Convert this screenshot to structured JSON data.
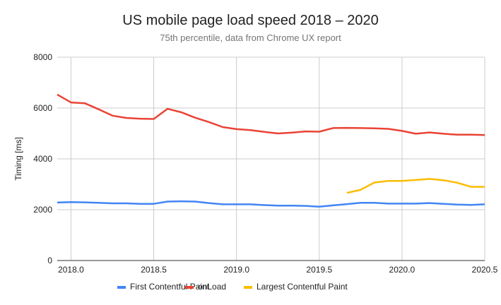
{
  "chart_data": {
    "type": "line",
    "title": "US mobile page load speed 2018 – 2020",
    "subtitle": "75th percentile, data from Chrome UX report",
    "xlabel": "",
    "ylabel": "Timing [ms]",
    "xlim": [
      2017.917,
      2020.5
    ],
    "ylim": [
      0,
      8000
    ],
    "x_ticks": [
      2018.0,
      2018.5,
      2019.0,
      2019.5,
      2020.0,
      2020.5
    ],
    "x_tick_labels": [
      "2018.0",
      "2018.5",
      "2019.0",
      "2019.5",
      "2020.0",
      "2020.5"
    ],
    "y_ticks": [
      0,
      2000,
      4000,
      6000,
      8000
    ],
    "y_tick_labels": [
      "0",
      "2000",
      "4000",
      "6000",
      "8000"
    ],
    "grid": true,
    "legend_position": "bottom",
    "series": [
      {
        "name": "First Contentful Paint",
        "color": "#4285f4",
        "x": [
          2017.917,
          2018.0,
          2018.083,
          2018.167,
          2018.25,
          2018.333,
          2018.417,
          2018.5,
          2018.583,
          2018.667,
          2018.75,
          2018.833,
          2018.917,
          2019.0,
          2019.083,
          2019.167,
          2019.25,
          2019.333,
          2019.417,
          2019.5,
          2019.583,
          2019.667,
          2019.75,
          2019.833,
          2019.917,
          2020.0,
          2020.083,
          2020.167,
          2020.25,
          2020.333,
          2020.417,
          2020.5
        ],
        "values": [
          2280,
          2300,
          2290,
          2270,
          2250,
          2250,
          2230,
          2230,
          2320,
          2330,
          2320,
          2260,
          2210,
          2210,
          2210,
          2180,
          2160,
          2160,
          2150,
          2120,
          2170,
          2220,
          2270,
          2270,
          2240,
          2240,
          2240,
          2260,
          2230,
          2200,
          2190,
          2210
        ]
      },
      {
        "name": "onLoad",
        "color": "#ea4335",
        "x": [
          2017.917,
          2018.0,
          2018.083,
          2018.167,
          2018.25,
          2018.333,
          2018.417,
          2018.5,
          2018.583,
          2018.667,
          2018.75,
          2018.833,
          2018.917,
          2019.0,
          2019.083,
          2019.167,
          2019.25,
          2019.333,
          2019.417,
          2019.5,
          2019.583,
          2019.667,
          2019.75,
          2019.833,
          2019.917,
          2020.0,
          2020.083,
          2020.167,
          2020.25,
          2020.333,
          2020.417,
          2020.5
        ],
        "values": [
          6530,
          6220,
          6190,
          5950,
          5700,
          5610,
          5580,
          5570,
          5970,
          5830,
          5620,
          5450,
          5250,
          5170,
          5130,
          5060,
          5000,
          5030,
          5080,
          5070,
          5210,
          5220,
          5210,
          5200,
          5180,
          5100,
          4990,
          5040,
          4990,
          4950,
          4950,
          4940
        ]
      },
      {
        "name": "Largest Contentful Paint",
        "color": "#fbbc04",
        "x": [
          2019.667,
          2019.75,
          2019.833,
          2019.917,
          2020.0,
          2020.083,
          2020.167,
          2020.25,
          2020.333,
          2020.417,
          2020.5
        ],
        "values": [
          2660,
          2780,
          3070,
          3130,
          3130,
          3170,
          3210,
          3160,
          3060,
          2900,
          2900
        ]
      }
    ]
  }
}
